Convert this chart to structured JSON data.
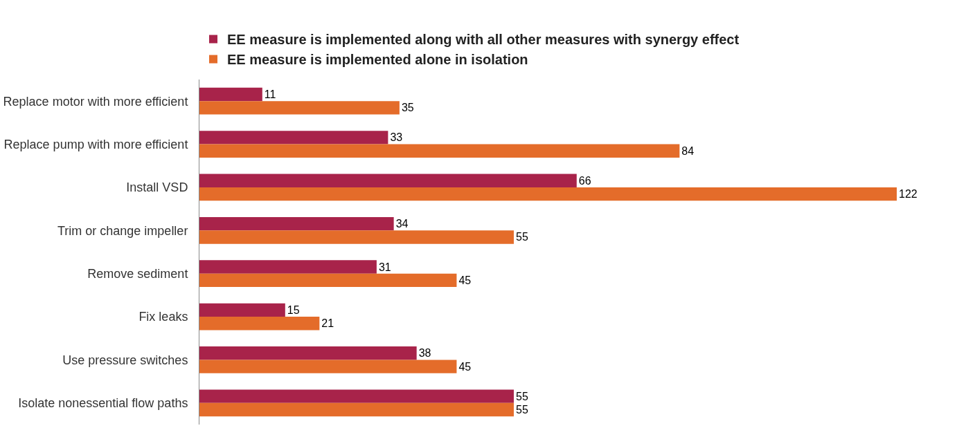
{
  "chart_data": {
    "type": "bar",
    "orientation": "horizontal",
    "categories": [
      "Replace motor with more efficient",
      "Replace pump with more efficient",
      "Install VSD",
      "Trim or change impeller",
      "Remove sediment",
      "Fix leaks",
      "Use pressure switches",
      "Isolate nonessential flow paths"
    ],
    "series": [
      {
        "name": "EE measure is implemented along with all other measures with synergy effect",
        "color": "#a8234a",
        "values": [
          11,
          33,
          66,
          34,
          31,
          15,
          38,
          55
        ]
      },
      {
        "name": "EE measure is implemented alone in isolation",
        "color": "#e46c2a",
        "values": [
          35,
          84,
          122,
          55,
          45,
          21,
          45,
          55
        ]
      }
    ],
    "data_labels": true,
    "legend": "top",
    "grid": false,
    "tick_labels": "y"
  }
}
